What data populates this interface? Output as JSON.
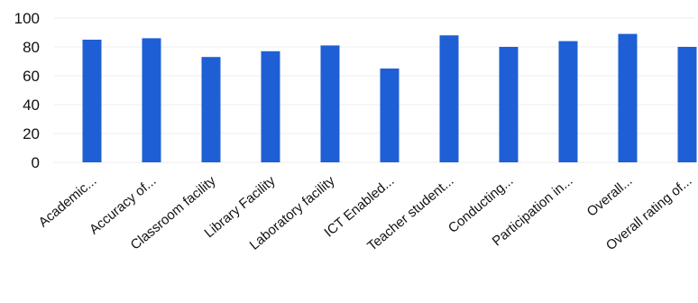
{
  "chart_data": {
    "type": "bar",
    "title": "",
    "xlabel": "",
    "ylabel": "",
    "ylim": [
      0,
      100
    ],
    "yticks": [
      0,
      20,
      40,
      60,
      80,
      100
    ],
    "grid": true,
    "legend": "none",
    "bar_color": "#1f5fd6",
    "categories": [
      "Academic...",
      "Accuracy of...",
      "Classroom facility",
      "Library Facility",
      "Laboratory facility",
      "ICT Enabled...",
      "Teacher student...",
      "Conducting...",
      "Participation in...",
      "Overall...",
      "Overall rating of..."
    ],
    "values": [
      85,
      86,
      73,
      77,
      81,
      65,
      88,
      80,
      84,
      89,
      80
    ]
  }
}
